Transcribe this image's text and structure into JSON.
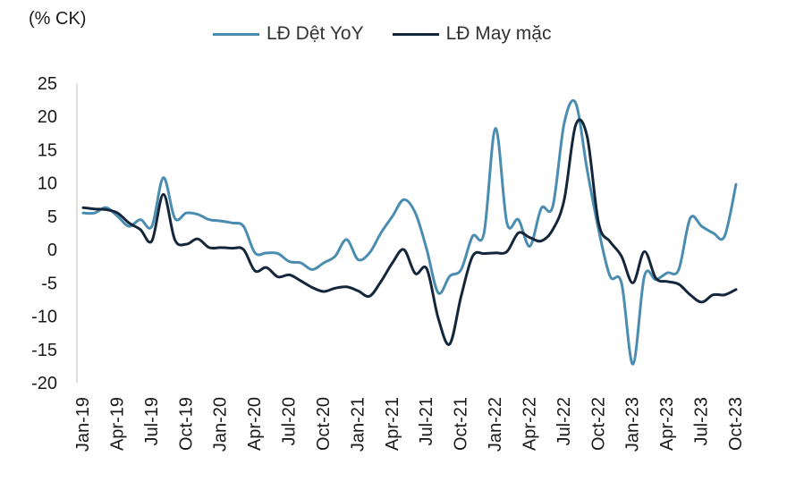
{
  "chart_data": {
    "type": "line",
    "unit_label": "(% CK)",
    "x": [
      "Jan-19",
      "Feb-19",
      "Mar-19",
      "Apr-19",
      "May-19",
      "Jun-19",
      "Jul-19",
      "Aug-19",
      "Sep-19",
      "Oct-19",
      "Nov-19",
      "Dec-19",
      "Jan-20",
      "Feb-20",
      "Mar-20",
      "Apr-20",
      "May-20",
      "Jun-20",
      "Jul-20",
      "Aug-20",
      "Sep-20",
      "Oct-20",
      "Nov-20",
      "Dec-20",
      "Jan-21",
      "Feb-21",
      "Mar-21",
      "Apr-21",
      "May-21",
      "Jun-21",
      "Jul-21",
      "Aug-21",
      "Sep-21",
      "Oct-21",
      "Nov-21",
      "Dec-21",
      "Jan-22",
      "Feb-22",
      "Mar-22",
      "Apr-22",
      "May-22",
      "Jun-22",
      "Jul-22",
      "Aug-22",
      "Sep-22",
      "Oct-22",
      "Nov-22",
      "Dec-22",
      "Jan-23",
      "Feb-23",
      "Mar-23",
      "Apr-23",
      "May-23",
      "Jun-23",
      "Jul-23",
      "Aug-23",
      "Sep-23",
      "Oct-23"
    ],
    "x_tick_labels": [
      "Jan-19",
      "Apr-19",
      "Jul-19",
      "Oct-19",
      "Jan-20",
      "Apr-20",
      "Jul-20",
      "Oct-20",
      "Jan-21",
      "Apr-21",
      "Jul-21",
      "Oct-21",
      "Jan-22",
      "Apr-22",
      "Jul-22",
      "Oct-22",
      "Jan-23",
      "Apr-23",
      "Jul-23",
      "Oct-23"
    ],
    "y_tick_labels": [
      "25",
      "20",
      "15",
      "10",
      "5",
      "0",
      "-5",
      "-10",
      "-15",
      "-20"
    ],
    "ylim": [
      -20,
      25
    ],
    "grid": false,
    "legend_position": "top",
    "series": [
      {
        "name": "LĐ Dệt YoY",
        "color": "#4a8db0",
        "values": [
          5.5,
          5.5,
          6.3,
          5.0,
          3.5,
          4.5,
          3.5,
          10.8,
          4.7,
          5.5,
          5.3,
          4.5,
          4.3,
          4.0,
          3.5,
          -0.5,
          -0.5,
          -0.6,
          -1.8,
          -2.0,
          -3.0,
          -2.0,
          -1.0,
          1.5,
          -1.5,
          -0.5,
          2.5,
          5.0,
          7.5,
          5.5,
          0.0,
          -6.5,
          -4.0,
          -3.0,
          2.0,
          2.5,
          18.2,
          4.0,
          4.5,
          0.5,
          6.2,
          6.5,
          19.0,
          22.0,
          12.0,
          3.0,
          -4.0,
          -5.0,
          -17.2,
          -4.0,
          -4.5,
          -3.5,
          -3.0,
          4.7,
          3.5,
          2.5,
          2.0,
          9.8
        ]
      },
      {
        "name": "LĐ May mặc",
        "color": "#14263a",
        "values": [
          6.3,
          6.1,
          6.0,
          5.5,
          4.0,
          3.0,
          1.3,
          8.3,
          1.5,
          0.8,
          1.6,
          0.3,
          0.3,
          0.2,
          0.0,
          -3.2,
          -2.7,
          -4.1,
          -3.8,
          -4.7,
          -5.7,
          -6.3,
          -5.8,
          -5.6,
          -6.2,
          -7.0,
          -4.8,
          -2.0,
          0.0,
          -3.6,
          -2.9,
          -10.3,
          -14.2,
          -7.0,
          -1.0,
          -0.6,
          -0.5,
          -0.3,
          2.5,
          1.8,
          1.3,
          3.0,
          7.5,
          18.7,
          17.0,
          4.0,
          1.2,
          -1.0,
          -5.0,
          -0.3,
          -4.3,
          -4.8,
          -5.2,
          -6.8,
          -7.9,
          -6.8,
          -6.8,
          -6.0
        ]
      }
    ]
  }
}
